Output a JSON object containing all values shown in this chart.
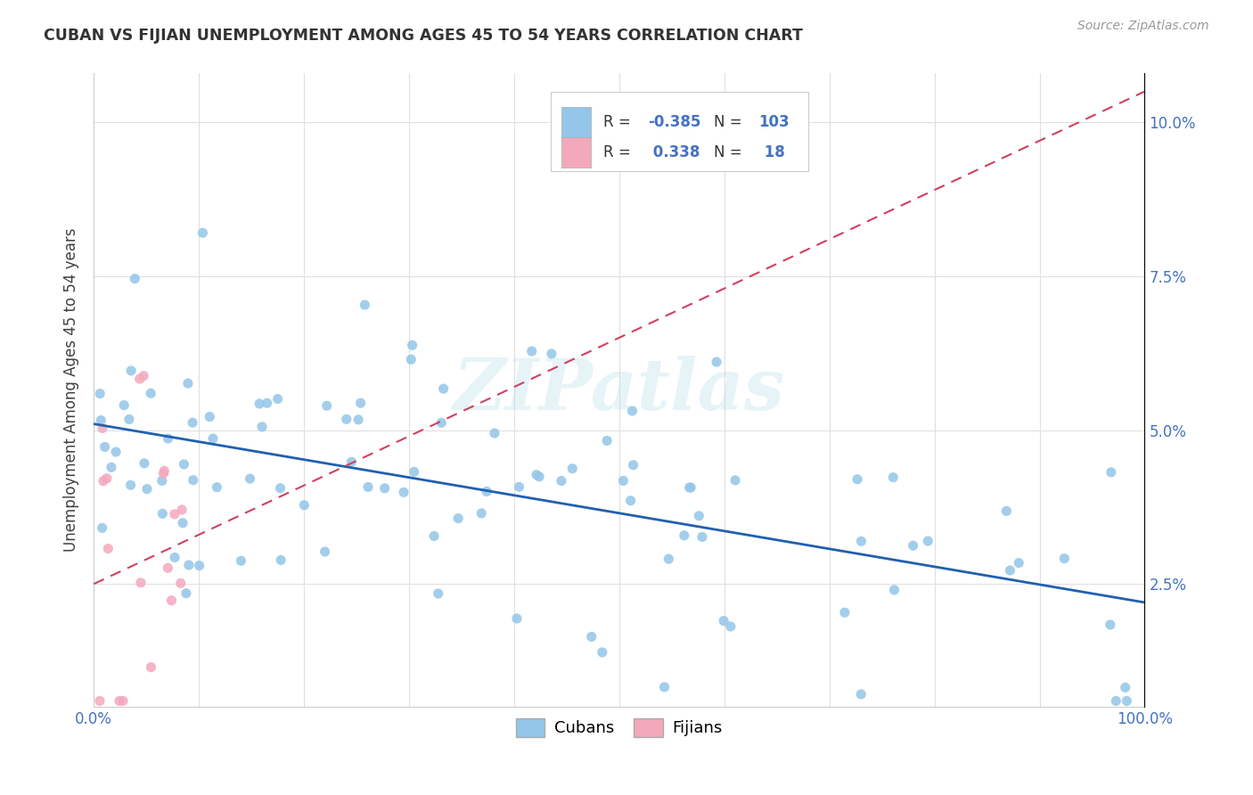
{
  "title": "CUBAN VS FIJIAN UNEMPLOYMENT AMONG AGES 45 TO 54 YEARS CORRELATION CHART",
  "source": "Source: ZipAtlas.com",
  "ylabel": "Unemployment Among Ages 45 to 54 years",
  "legend_cuban": {
    "R": "-0.385",
    "N": "103",
    "label": "Cubans"
  },
  "legend_fijian": {
    "R": "0.338",
    "N": "18",
    "label": "Fijians"
  },
  "cuban_color": "#93C6E8",
  "fijian_color": "#F4A8BC",
  "cuban_line_color": "#2060B0",
  "fijian_line_color": "#D04060",
  "watermark": "ZIPatlas",
  "background_color": "#FFFFFF",
  "xlim": [
    0.0,
    1.0
  ],
  "ylim": [
    0.005,
    0.108
  ],
  "ytick_vals": [
    0.025,
    0.05,
    0.075,
    0.1
  ],
  "ytick_labels": [
    "2.5%",
    "5.0%",
    "7.5%",
    "10.0%"
  ],
  "cuban_trend_x": [
    0.0,
    1.0
  ],
  "cuban_trend_y": [
    0.051,
    0.022
  ],
  "fijian_trend_x": [
    0.0,
    1.0
  ],
  "fijian_trend_y": [
    0.025,
    0.105
  ],
  "cuban_seed": 77,
  "fijian_seed": 55,
  "n_cuban": 103,
  "n_fijian": 18,
  "grid_color": "#E0E0E0",
  "text_color": "#404040",
  "axis_color": "#4472C4"
}
